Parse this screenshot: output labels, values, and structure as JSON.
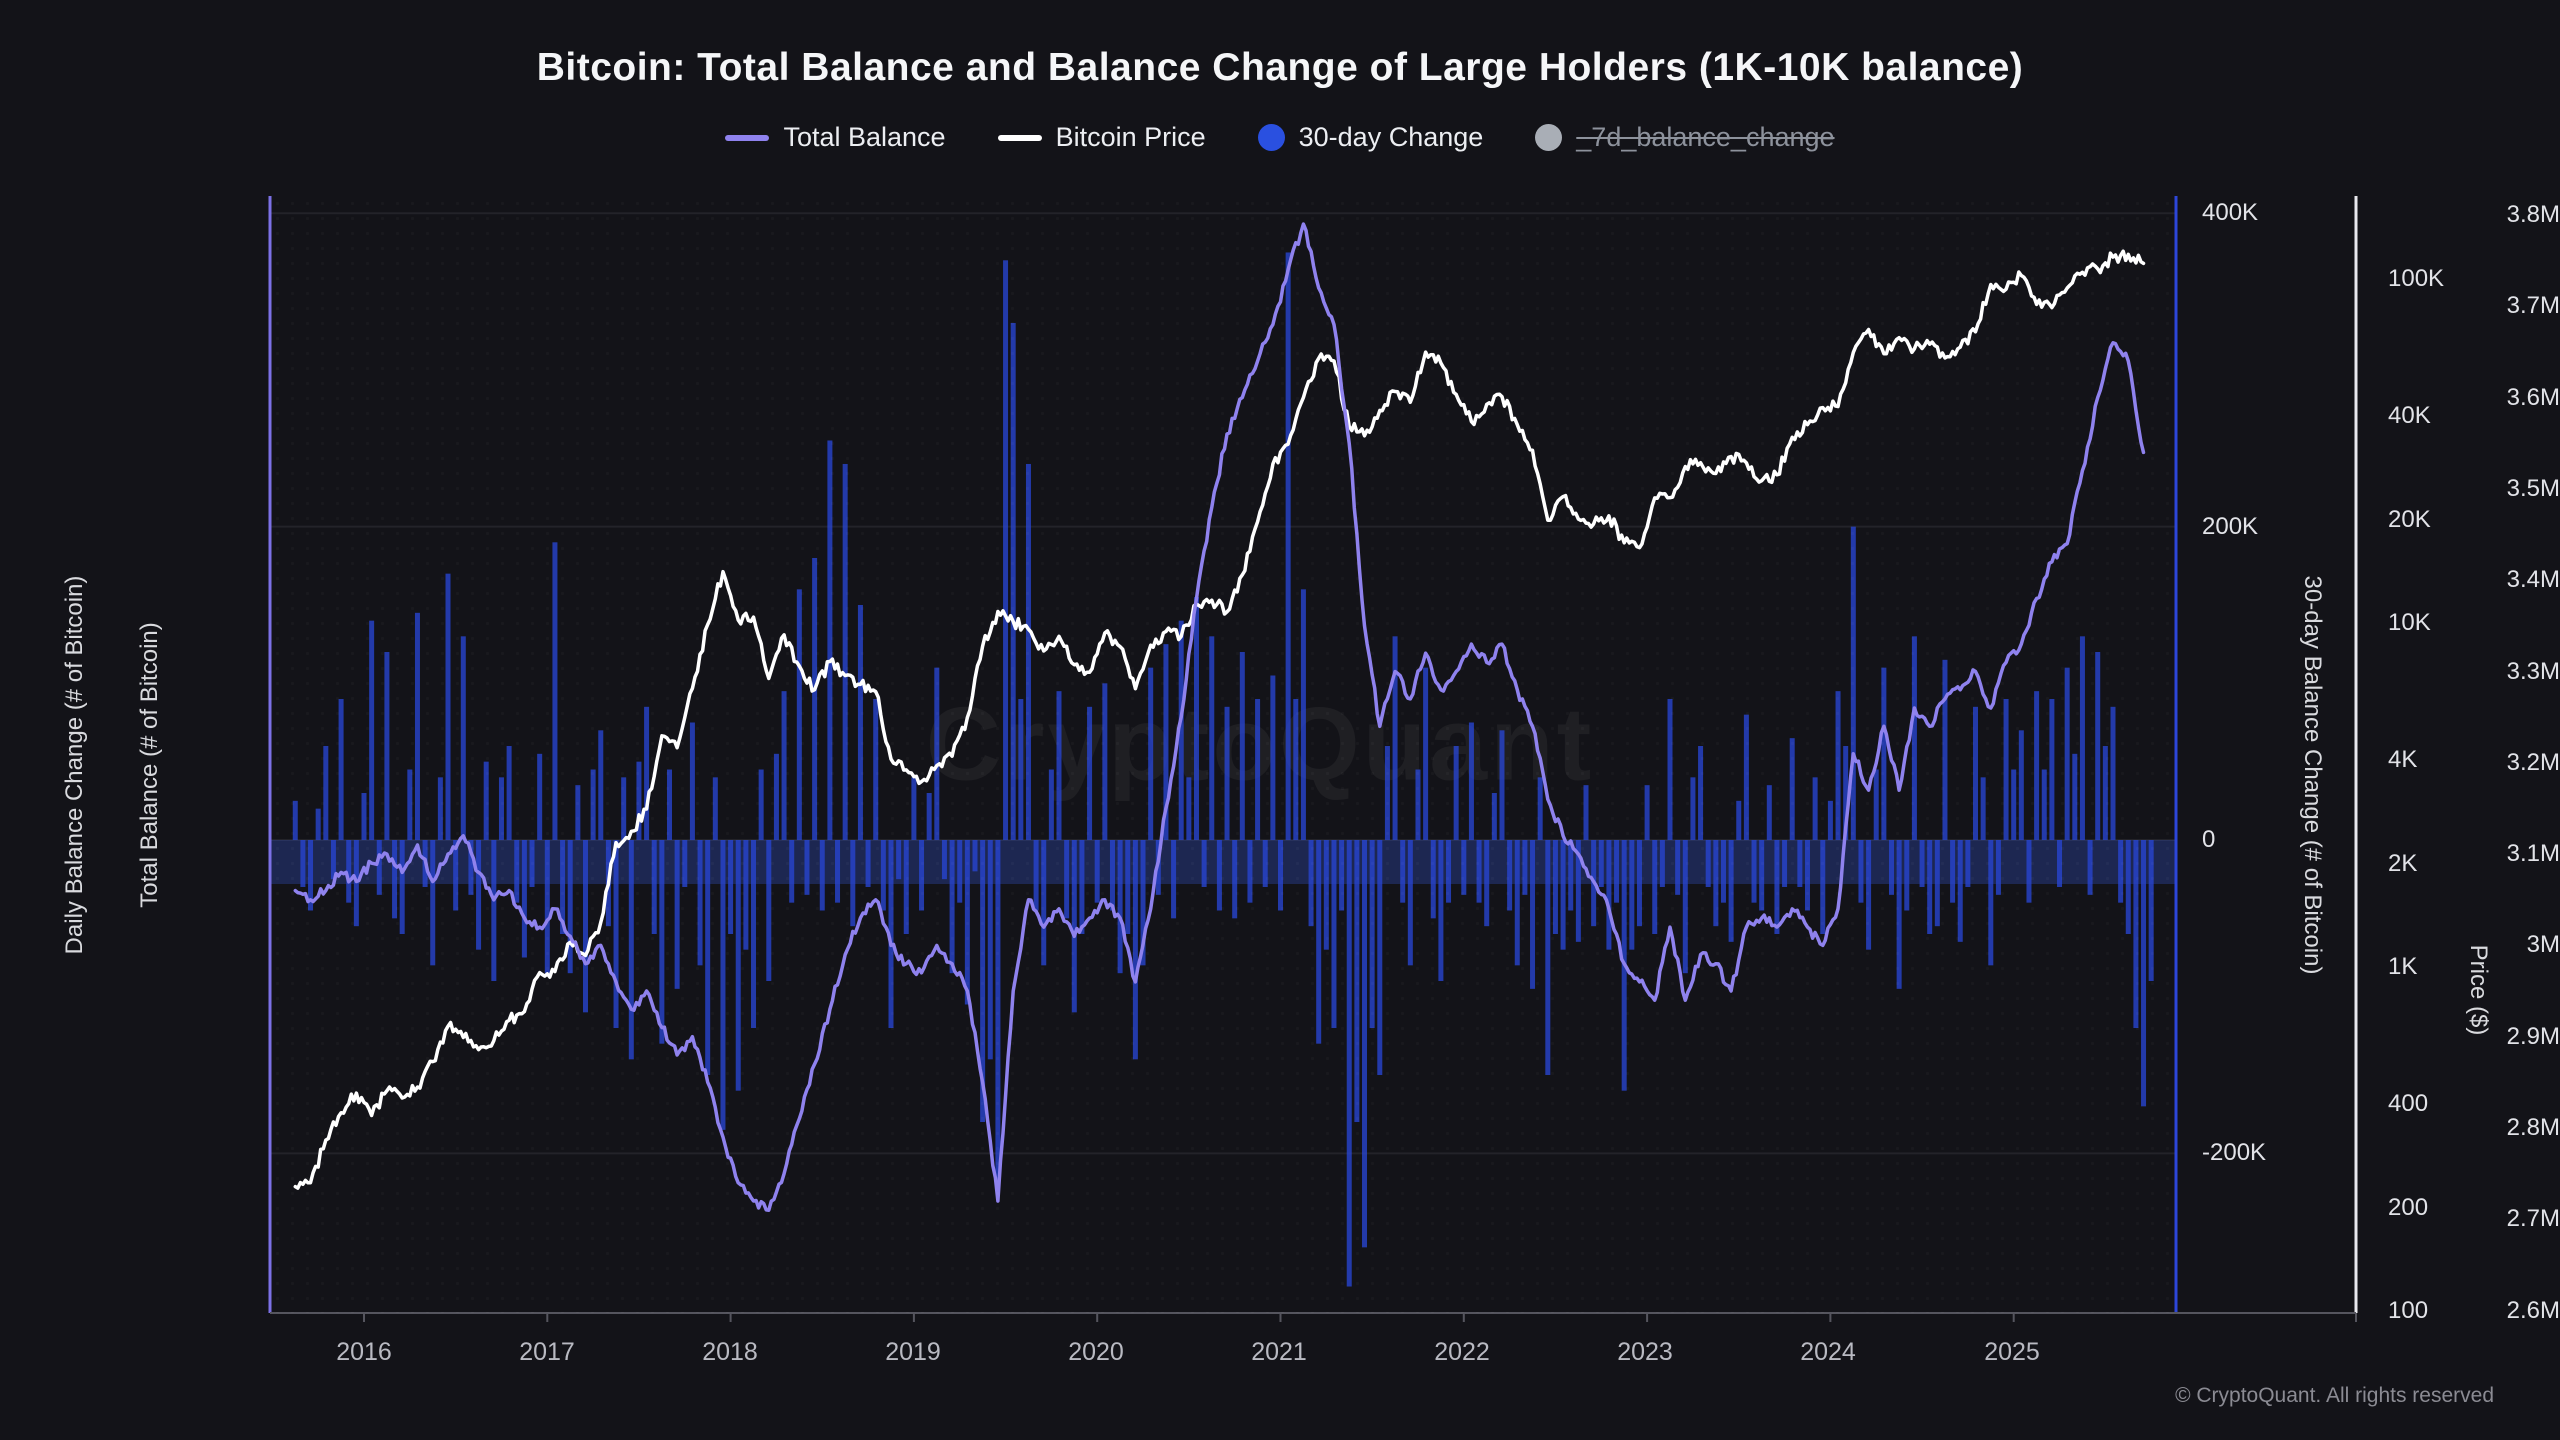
{
  "title": "Bitcoin: Total Balance and Balance Change of Large Holders (1K-10K balance)",
  "watermark": "CryptoQuant",
  "copyright": "© CryptoQuant. All rights reserved",
  "legend": {
    "items": [
      {
        "label": "Total Balance",
        "swatch": "line",
        "color": "#8f82ee",
        "disabled": false
      },
      {
        "label": "Bitcoin Price",
        "swatch": "line",
        "color": "#ffffff",
        "disabled": false
      },
      {
        "label": "30-day Change",
        "swatch": "dot",
        "color": "#2a50e0",
        "disabled": false
      },
      {
        "label": "_7d_balance_change",
        "swatch": "dot",
        "color": "#a9aeb6",
        "disabled": true
      }
    ]
  },
  "chart_data": {
    "type": "mixed",
    "title": "Bitcoin: Total Balance and Balance Change of Large Holders (1K-10K balance)",
    "legend_position": "top",
    "grid": "horizontal-faint",
    "x_axis": {
      "years": [
        "2016",
        "2017",
        "2018",
        "2019",
        "2020",
        "2021",
        "2022",
        "2023",
        "2024",
        "2025"
      ],
      "start_decimal_year": 2015.625,
      "end_decimal_year": 2025.708,
      "points_per_month_lines": 1,
      "points_per_month_bars": 2
    },
    "axes": {
      "daily_change": {
        "title": "Daily Balance Change (# of Bitcoin)"
      },
      "balance": {
        "title": "Total Balance (# of Bitcoin)",
        "ticks": [
          "3.8M",
          "3.7M",
          "3.6M",
          "3.5M",
          "3.4M",
          "3.3M",
          "3.2M",
          "3.1M",
          "3M",
          "2.9M",
          "2.8M",
          "2.7M",
          "2.6M"
        ],
        "min": 2.6,
        "max": 3.8,
        "unit": "M BTC",
        "axis_color": "#7c71e6"
      },
      "change_30d": {
        "title": "30-day Balance Change (# of Bitcoin)",
        "ticks": [
          "400K",
          "200K",
          "0",
          "-200K"
        ],
        "tick_values_k": [
          400,
          200,
          0,
          -200
        ],
        "min_k": -290,
        "max_k": 410,
        "axis_color": "#2d46d8"
      },
      "price": {
        "title": "Price ($)",
        "ticks": [
          "100K",
          "40K",
          "20K",
          "10K",
          "4K",
          "2K",
          "1K",
          "400",
          "200",
          "100"
        ],
        "tick_values": [
          100000,
          40000,
          20000,
          10000,
          4000,
          2000,
          1000,
          400,
          200,
          100
        ],
        "scale": "log",
        "min": 100,
        "max": 160000,
        "axis_color": "#e9e9ee"
      }
    },
    "series": [
      {
        "name": "Total Balance",
        "type": "line",
        "axis": "balance",
        "color": "#8f82ee",
        "cadence": "monthly",
        "start": "2015-08",
        "values_m": [
          3.06,
          3.05,
          3.06,
          3.08,
          3.07,
          3.09,
          3.1,
          3.08,
          3.11,
          3.07,
          3.1,
          3.12,
          3.08,
          3.05,
          3.06,
          3.03,
          3.02,
          3.04,
          3.01,
          2.98,
          3.0,
          2.96,
          2.93,
          2.95,
          2.91,
          2.88,
          2.9,
          2.85,
          2.79,
          2.74,
          2.72,
          2.71,
          2.75,
          2.81,
          2.87,
          2.93,
          2.99,
          3.03,
          3.05,
          3.0,
          2.98,
          2.97,
          3.0,
          2.98,
          2.95,
          2.85,
          2.72,
          2.95,
          3.05,
          3.02,
          3.04,
          3.01,
          3.03,
          3.05,
          3.03,
          2.96,
          3.04,
          3.15,
          3.25,
          3.38,
          3.48,
          3.56,
          3.6,
          3.64,
          3.68,
          3.74,
          3.79,
          3.72,
          3.68,
          3.55,
          3.35,
          3.24,
          3.3,
          3.27,
          3.32,
          3.28,
          3.3,
          3.33,
          3.31,
          3.33,
          3.28,
          3.24,
          3.16,
          3.12,
          3.1,
          3.07,
          3.04,
          2.98,
          2.96,
          2.94,
          3.02,
          2.94,
          2.99,
          2.98,
          2.95,
          3.02,
          3.03,
          3.02,
          3.04,
          3.02,
          3.0,
          3.04,
          3.21,
          3.17,
          3.24,
          3.17,
          3.26,
          3.24,
          3.27,
          3.28,
          3.3,
          3.26,
          3.31,
          3.33,
          3.38,
          3.42,
          3.44,
          3.52,
          3.6,
          3.66,
          3.64,
          3.54
        ]
      },
      {
        "name": "Bitcoin Price",
        "type": "line",
        "axis": "price",
        "color": "#ffffff",
        "cadence": "monthly",
        "start": "2015-08",
        "values_usd": [
          230,
          236,
          314,
          377,
          430,
          370,
          437,
          416,
          448,
          531,
          673,
          624,
          575,
          610,
          700,
          742,
          963,
          970,
          1180,
          1080,
          1350,
          2300,
          2480,
          2880,
          4700,
          4340,
          6450,
          9900,
          14100,
          10200,
          10400,
          6900,
          9240,
          7500,
          6400,
          7730,
          7030,
          6630,
          6320,
          4020,
          3740,
          3460,
          3850,
          4100,
          5320,
          8560,
          10800,
          10100,
          9590,
          8290,
          9150,
          7560,
          7190,
          9350,
          8540,
          6440,
          8620,
          9450,
          9140,
          11350,
          11650,
          10780,
          13800,
          19700,
          29000,
          33100,
          45200,
          58800,
          57800,
          37300,
          35000,
          41500,
          47100,
          43800,
          61300,
          57000,
          46200,
          38500,
          43200,
          45500,
          37700,
          31800,
          19900,
          23300,
          20050,
          19400,
          20500,
          17100,
          16550,
          23100,
          23150,
          28500,
          29250,
          27200,
          30480,
          29230,
          25930,
          26970,
          34650,
          37700,
          42270,
          42580,
          61200,
          71330,
          60640,
          67500,
          62680,
          64620,
          58970,
          63330,
          70220,
          96400,
          93430,
          102400,
          84350,
          82550,
          94180,
          104600,
          107100,
          115800,
          118000,
          111000
        ]
      },
      {
        "name": "30-day Change",
        "type": "bar",
        "axis": "change_30d",
        "color": "#2845cf",
        "cadence": "half-monthly",
        "start": "2015-08",
        "values_k": [
          25,
          -30,
          -45,
          20,
          60,
          -25,
          90,
          -40,
          -55,
          30,
          140,
          -35,
          120,
          -50,
          -60,
          45,
          145,
          -30,
          -80,
          40,
          170,
          -45,
          130,
          -35,
          -70,
          50,
          -90,
          40,
          60,
          -40,
          -75,
          -30,
          55,
          -85,
          190,
          -60,
          -85,
          35,
          -110,
          45,
          70,
          -55,
          -120,
          40,
          -140,
          50,
          85,
          -60,
          -130,
          45,
          -95,
          -30,
          75,
          -80,
          -150,
          40,
          -185,
          -60,
          -160,
          -70,
          -120,
          45,
          -90,
          55,
          95,
          -40,
          160,
          -35,
          180,
          -45,
          255,
          -40,
          240,
          -55,
          150,
          -30,
          90,
          -45,
          -120,
          -25,
          -60,
          40,
          -45,
          30,
          110,
          -25,
          -85,
          -40,
          -105,
          -20,
          -180,
          -140,
          -220,
          370,
          330,
          90,
          240,
          -45,
          -80,
          45,
          95,
          -50,
          -110,
          -60,
          85,
          -40,
          100,
          -45,
          -85,
          -60,
          -140,
          -80,
          110,
          -35,
          125,
          -50,
          140,
          40,
          155,
          -30,
          130,
          -45,
          85,
          -50,
          120,
          -40,
          90,
          -30,
          105,
          -45,
          375,
          90,
          160,
          -55,
          -130,
          -70,
          -120,
          -45,
          -285,
          -180,
          -260,
          -120,
          -150,
          60,
          130,
          -40,
          -80,
          45,
          110,
          -50,
          -90,
          -40,
          60,
          -35,
          75,
          -40,
          -55,
          30,
          70,
          -45,
          -80,
          -35,
          -95,
          40,
          -150,
          -60,
          -70,
          -45,
          -65,
          35,
          -55,
          -30,
          -70,
          -40,
          -160,
          -70,
          -55,
          35,
          -60,
          -30,
          90,
          -35,
          -85,
          40,
          60,
          -30,
          -55,
          -40,
          -65,
          25,
          80,
          -40,
          -45,
          35,
          -60,
          -30,
          65,
          -30,
          -45,
          40,
          -60,
          25,
          95,
          60,
          200,
          -40,
          -70,
          45,
          110,
          -35,
          -95,
          -45,
          130,
          -30,
          -60,
          -55,
          115,
          -40,
          -65,
          -30,
          85,
          40,
          -80,
          -35,
          90,
          45,
          70,
          -40,
          95,
          45,
          90,
          -30,
          110,
          55,
          130,
          -35,
          120,
          60,
          85,
          -40,
          -60,
          -120,
          -170,
          -90
        ]
      },
      {
        "name": "_7d_balance_change",
        "type": "bar",
        "axis": "change_30d",
        "color": "#a9aeb6",
        "disabled": true,
        "values_k": []
      }
    ]
  }
}
